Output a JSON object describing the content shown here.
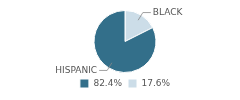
{
  "chart_data": {
    "type": "pie",
    "categories": [
      "BLACK",
      "HISPANIC"
    ],
    "values": [
      17.6,
      82.4
    ],
    "value_labels": [
      "17.6%",
      "82.4%"
    ],
    "colors": [
      "#ccdde8",
      "#336f8a"
    ],
    "legend": "bottom"
  }
}
